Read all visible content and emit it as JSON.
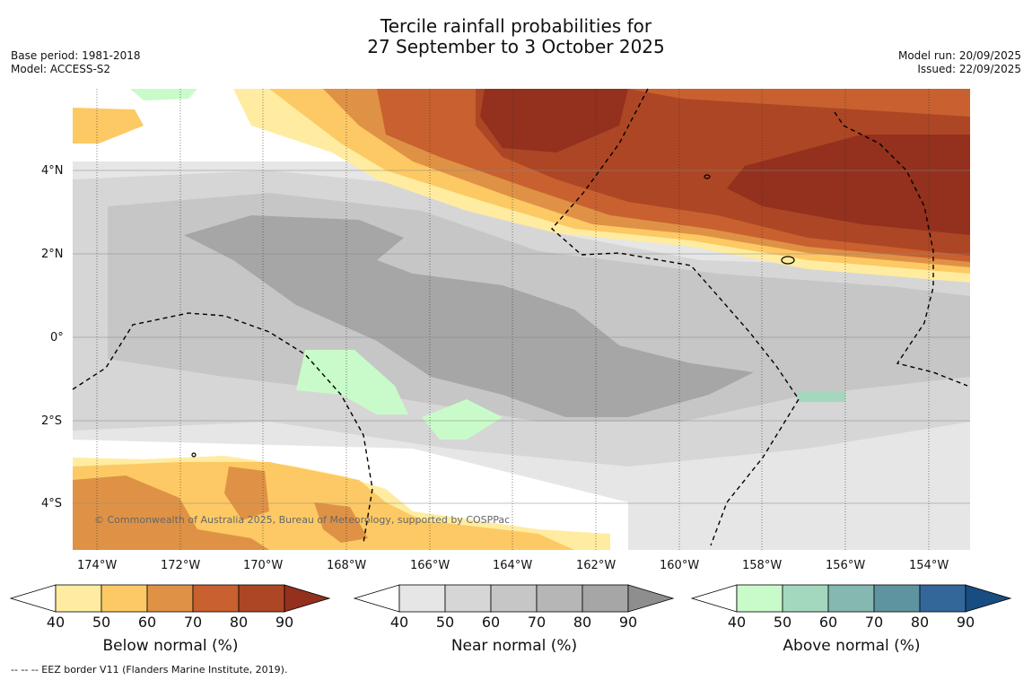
{
  "title": {
    "line1": "Tercile rainfall probabilities for",
    "line2": "27 September to 3 October 2025"
  },
  "meta_left": {
    "base_period": "Base period: 1981-2018",
    "model": "Model: ACCESS-S2"
  },
  "meta_right": {
    "model_run": "Model run: 20/09/2025",
    "issued": "Issued: 22/09/2025"
  },
  "map": {
    "lon_labels": [
      "174°W",
      "172°W",
      "170°W",
      "168°W",
      "166°W",
      "164°W",
      "162°W",
      "160°W",
      "158°W",
      "156°W",
      "154°W"
    ],
    "lat_labels": [
      "4°N",
      "2°N",
      "0°",
      "2°S",
      "4°S"
    ],
    "copyright": "© Commonwealth of Australia 2025, Bureau of Meteorology, supported by COSPPac"
  },
  "colorbars": [
    {
      "title": "Below normal (%)",
      "ticks": [
        "40",
        "50",
        "60",
        "70",
        "80",
        "90"
      ],
      "colors": [
        "#ffeca0",
        "#fdc964",
        "#df9245",
        "#c9602f",
        "#ad4624",
        "#93301e"
      ]
    },
    {
      "title": "Near normal (%)",
      "ticks": [
        "40",
        "50",
        "60",
        "70",
        "80",
        "90"
      ],
      "colors": [
        "#e6e6e6",
        "#d6d6d6",
        "#c6c6c6",
        "#b6b6b6",
        "#a6a6a6",
        "#8e8e8e"
      ]
    },
    {
      "title": "Above normal (%)",
      "ticks": [
        "40",
        "50",
        "60",
        "70",
        "80",
        "90"
      ],
      "colors": [
        "#c8fbc9",
        "#a4d8be",
        "#84b8b0",
        "#5e94a0",
        "#33679a",
        "#194c80"
      ]
    }
  ],
  "footnote": "--  --  -- EEZ border V11 (Flanders Marine Institute, 2019)."
}
